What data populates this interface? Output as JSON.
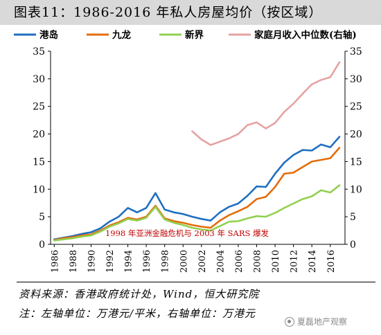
{
  "title": "图表11：1986-2016 年私人房屋均价（按区域）",
  "chart_data": {
    "type": "line",
    "x": [
      1986,
      1987,
      1988,
      1989,
      1990,
      1991,
      1992,
      1993,
      1994,
      1995,
      1996,
      1997,
      1998,
      1999,
      2000,
      2001,
      2002,
      2003,
      2004,
      2005,
      2006,
      2007,
      2008,
      2009,
      2010,
      2011,
      2012,
      2013,
      2014,
      2015,
      2016,
      2017
    ],
    "x_ticks": [
      "1986",
      "1988",
      "1990",
      "1992",
      "1994",
      "1996",
      "1998",
      "2000",
      "2002",
      "2004",
      "2006",
      "2008",
      "2010",
      "2012",
      "2014",
      "2016"
    ],
    "y_ticks": [
      "0",
      "5",
      "10",
      "15",
      "20",
      "25",
      "30",
      "35"
    ],
    "ylim": [
      0,
      35
    ],
    "y2lim": [
      0,
      35
    ],
    "grid": false,
    "legend_position": "top",
    "series": [
      {
        "name": "港岛",
        "color": "#1f6fc0",
        "axis": "left",
        "values": [
          0.9,
          1.2,
          1.5,
          1.9,
          2.2,
          2.9,
          4.1,
          5.0,
          6.6,
          5.8,
          6.6,
          9.3,
          6.3,
          5.8,
          5.5,
          5.0,
          4.6,
          4.3,
          5.8,
          6.8,
          7.4,
          8.8,
          10.5,
          10.4,
          12.8,
          14.8,
          16.2,
          17.1,
          17.0,
          18.1,
          17.6,
          19.5
        ]
      },
      {
        "name": "九龙",
        "color": "#e46c0a",
        "axis": "left",
        "values": [
          0.8,
          1.1,
          1.3,
          1.6,
          1.8,
          2.5,
          3.4,
          4.0,
          4.8,
          4.5,
          5.0,
          7.0,
          4.7,
          4.2,
          3.9,
          3.5,
          3.2,
          3.0,
          4.3,
          5.3,
          6.0,
          6.8,
          8.2,
          8.6,
          10.4,
          12.8,
          13.0,
          14.0,
          15.0,
          15.3,
          15.6,
          17.5
        ]
      },
      {
        "name": "新界",
        "color": "#92d050",
        "axis": "left",
        "values": [
          0.7,
          0.9,
          1.1,
          1.4,
          1.6,
          2.3,
          3.2,
          3.8,
          4.6,
          4.3,
          4.8,
          6.8,
          4.5,
          3.9,
          3.5,
          3.0,
          2.7,
          2.5,
          3.3,
          4.1,
          4.2,
          4.7,
          5.1,
          5.0,
          5.7,
          6.6,
          7.4,
          8.2,
          8.7,
          9.8,
          9.4,
          10.7
        ]
      },
      {
        "name": "家庭月收入中位数(右轴)",
        "color": "#e6a2a2",
        "axis": "right",
        "values": [
          null,
          null,
          null,
          null,
          null,
          null,
          null,
          null,
          null,
          null,
          null,
          null,
          null,
          null,
          null,
          20.5,
          19.0,
          18.0,
          18.6,
          19.2,
          20.0,
          21.6,
          22.1,
          21.0,
          22.0,
          24.0,
          25.5,
          27.3,
          29.0,
          29.8,
          30.3,
          33.0
        ]
      }
    ],
    "annotation": "1998 年亚洲金融危机与 2003 年 SARS 爆发",
    "annotation_color": "#c00000"
  },
  "footer": {
    "source": "资料来源：香港政府统计处，Wind，恒大研究院",
    "note": "注：左轴单位：万港元/平米，右轴单位：万港元"
  },
  "watermark": "夏磊地产观察"
}
